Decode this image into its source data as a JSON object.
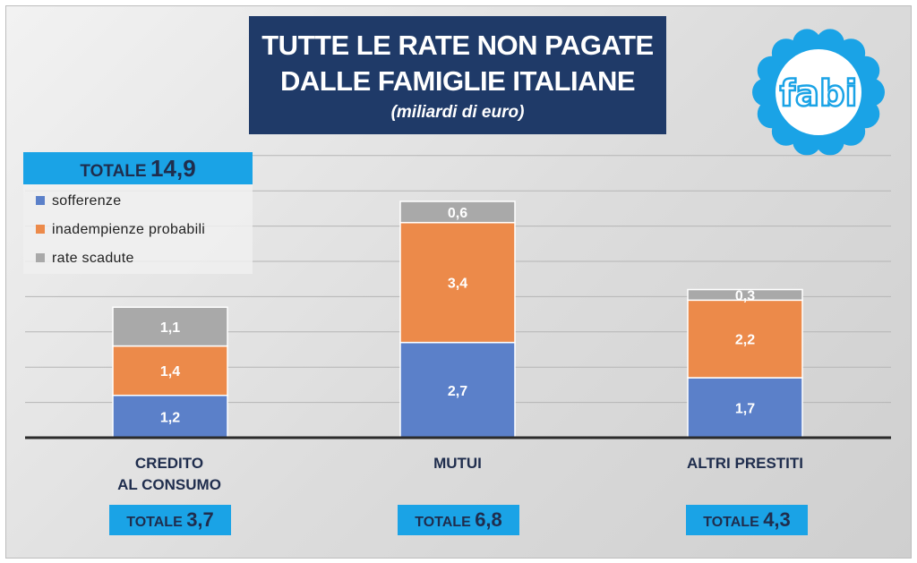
{
  "title": {
    "line1": "TUTTE LE RATE NON PAGATE",
    "line2": "DALLE FAMIGLIE ITALIANE",
    "subtitle": "(miliardi di euro)"
  },
  "grand_total": {
    "label": "TOTALE",
    "value": "14,9"
  },
  "logo": {
    "text": "fabi",
    "color": "#1aa3e6"
  },
  "colors": {
    "sofferenze": "#5b80c9",
    "inadempienze": "#ec8a4a",
    "scadute": "#a9a9a9",
    "title_bg": "#1f3a68",
    "tag_bg": "#1aa3e6"
  },
  "chart_data": {
    "type": "bar",
    "stacked": true,
    "categories": [
      "CREDITO\nAL CONSUMO",
      "MUTUI",
      "ALTRI PRESTITI"
    ],
    "category_lines": [
      [
        "CREDITO",
        "AL CONSUMO"
      ],
      [
        "MUTUI"
      ],
      [
        "ALTRI PRESTITI"
      ]
    ],
    "series": [
      {
        "name": "sofferenze",
        "values": [
          1.2,
          2.7,
          1.7
        ],
        "labels": [
          "1,2",
          "2,7",
          "1,7"
        ],
        "color": "#5b80c9"
      },
      {
        "name": "inadempienze probabili",
        "values": [
          1.4,
          3.4,
          2.2
        ],
        "labels": [
          "1,4",
          "3,4",
          "2,2"
        ],
        "color": "#ec8a4a"
      },
      {
        "name": "rate scadute",
        "values": [
          1.1,
          0.6,
          0.3
        ],
        "labels": [
          "1,1",
          "0,6",
          "0,3"
        ],
        "color": "#a9a9a9"
      }
    ],
    "totals": [
      {
        "label": "TOTALE",
        "value": "3,7"
      },
      {
        "label": "TOTALE",
        "value": "6,8"
      },
      {
        "label": "TOTALE",
        "value": "4,3"
      }
    ],
    "ylim": [
      0,
      8
    ],
    "grid": true,
    "legend_position": "top-left",
    "title": "TUTTE LE RATE NON PAGATE DALLE FAMIGLIE ITALIANE",
    "xlabel": "",
    "ylabel": ""
  }
}
